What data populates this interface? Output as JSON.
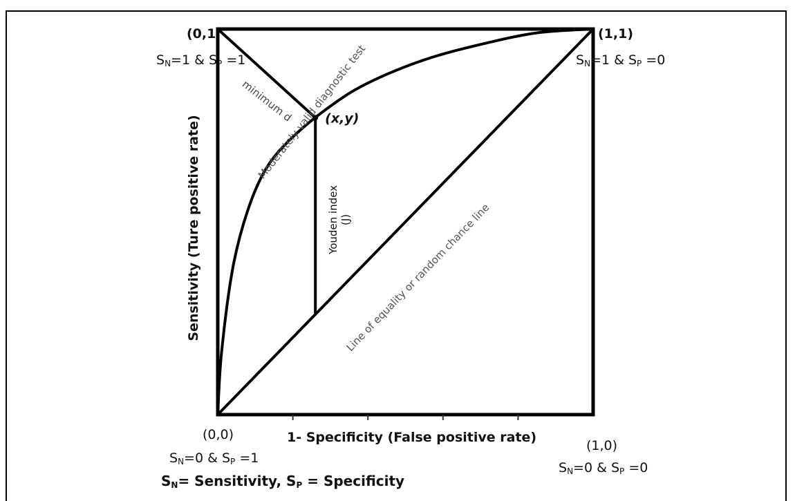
{
  "chart_data": {
    "type": "line",
    "title": "",
    "xlabel": "1- Specificity (False positive rate)",
    "ylabel": "Sensitivity (Ture positive rate)",
    "xlim": [
      0,
      1
    ],
    "ylim": [
      0,
      1
    ],
    "grid": false,
    "series": [
      {
        "name": "Moderately valid diagnostic test",
        "x": [
          0,
          0.01,
          0.04,
          0.08,
          0.13,
          0.2,
          0.3,
          0.4,
          0.55,
          0.7,
          0.85,
          1.0
        ],
        "y": [
          0,
          0.16,
          0.38,
          0.53,
          0.64,
          0.72,
          0.8,
          0.86,
          0.92,
          0.96,
          0.99,
          1.0
        ]
      },
      {
        "name": "Line of equality or random chance line",
        "x": [
          0,
          1
        ],
        "y": [
          0,
          1
        ]
      }
    ],
    "point": {
      "label": "(x,y)",
      "x": 0.26,
      "y": 0.77
    },
    "annotations": {
      "minimum_d": "minimum d",
      "youden": "Youden index",
      "youden_sym": "(J)"
    },
    "corners": {
      "top_left": {
        "coord": "(0,1",
        "desc": "=1 &",
        "sn": "1",
        "sp": "1"
      },
      "top_right": {
        "coord": "(1,1)",
        "sn": "1",
        "sp": "0"
      },
      "bottom_left": {
        "coord": "(0,0)",
        "sn": "0",
        "sp": "1"
      },
      "bottom_right": {
        "coord": "(1,0)",
        "sn": "0",
        "sp": "0"
      }
    },
    "legend_note": {
      "sn_text": "= Sensitivity,",
      "sp_text": "= Specificity"
    },
    "x_ticks": [
      0.2,
      0.4,
      0.6,
      0.8
    ]
  }
}
